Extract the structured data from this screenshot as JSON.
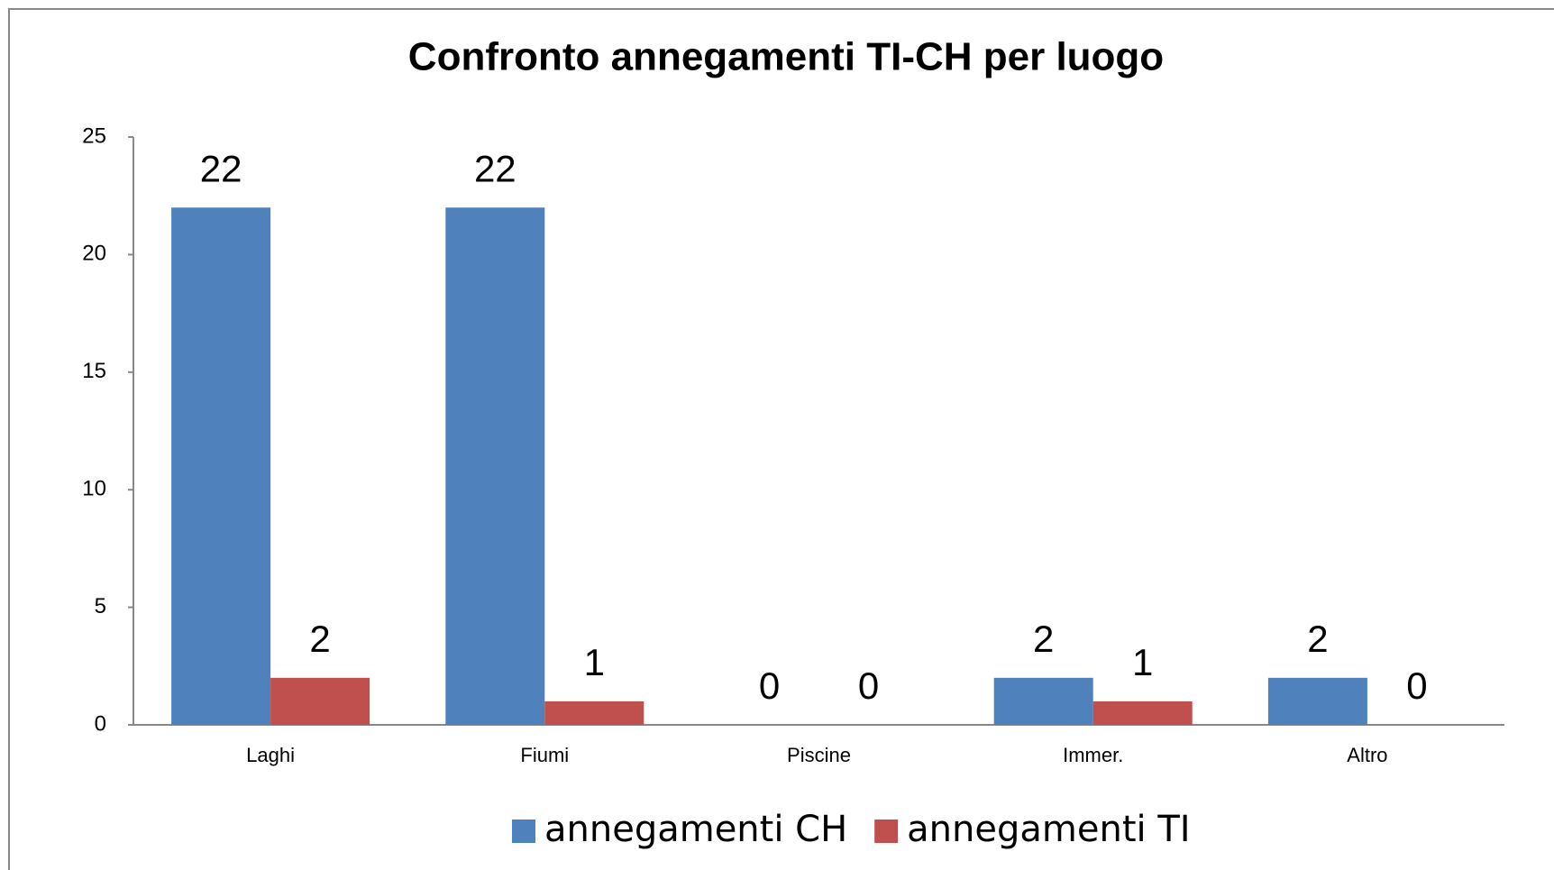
{
  "chart_data": {
    "type": "bar",
    "title": "Confronto annegamenti TI-CH per luogo",
    "categories": [
      "Laghi",
      "Fiumi",
      "Piscine",
      "Immer.",
      "Altro"
    ],
    "series": [
      {
        "name": "annegamenti CH",
        "color": "#4f81bd",
        "values": [
          22,
          22,
          0,
          2,
          2
        ]
      },
      {
        "name": "annegamenti TI",
        "color": "#c0504d",
        "values": [
          2,
          1,
          0,
          1,
          0
        ]
      }
    ],
    "ylim": [
      0,
      25
    ],
    "yticks": [
      0,
      5,
      10,
      15,
      20,
      25
    ],
    "grid": false,
    "legend": "bottom"
  }
}
